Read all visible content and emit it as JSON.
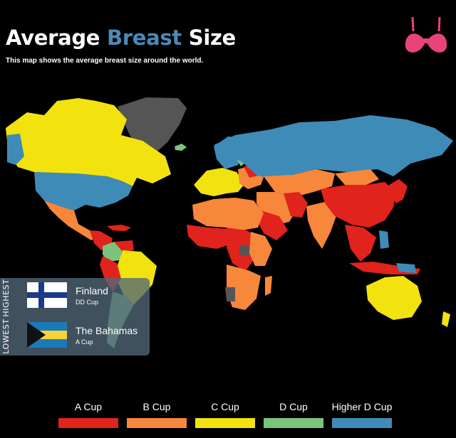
{
  "title": {
    "part1": "Average ",
    "part2": "Breast",
    "part3": " Size"
  },
  "subtitle": "This map shows the average breast size around the world.",
  "icon": "bra-icon",
  "colors": {
    "a_cup": "#e0231c",
    "b_cup": "#f7873a",
    "c_cup": "#f2e30f",
    "d_cup": "#7ac47c",
    "higher_d_cup": "#3f8bb8",
    "no_data": "#555555",
    "accent": "#4a8ab8",
    "icon": "#e8447a"
  },
  "callout": {
    "highest_label": "HIGHEST",
    "lowest_label": "LOWEST",
    "highest": {
      "country": "Finland",
      "cup": "DD Cup"
    },
    "lowest": {
      "country": "The Bahamas",
      "cup": "A Cup"
    }
  },
  "legend": [
    {
      "label": "A Cup",
      "color": "#e0231c"
    },
    {
      "label": "B Cup",
      "color": "#f7873a"
    },
    {
      "label": "C Cup",
      "color": "#f2e30f"
    },
    {
      "label": "D Cup",
      "color": "#7ac47c"
    },
    {
      "label": "Higher D Cup",
      "color": "#3f8bb8"
    }
  ]
}
